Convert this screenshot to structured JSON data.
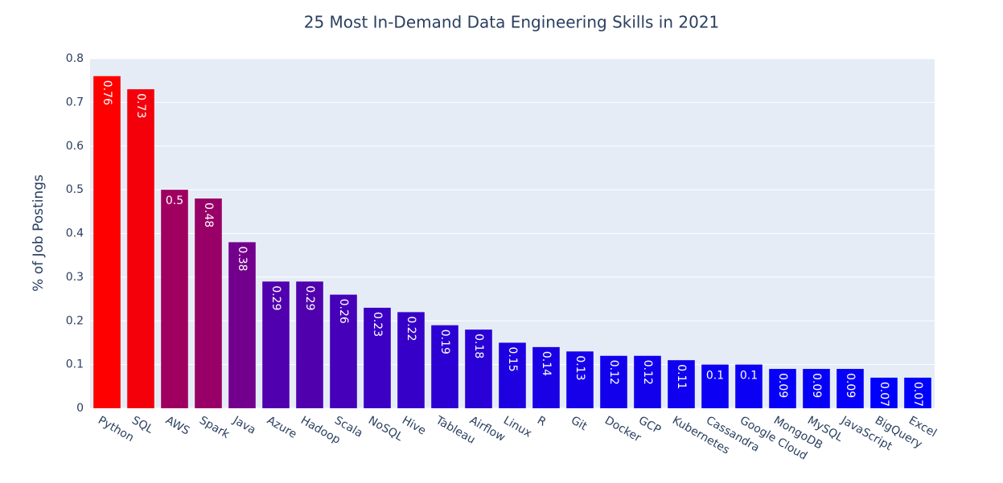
{
  "chart_data": {
    "type": "bar",
    "title": "25 Most In-Demand Data Engineering Skills in 2021",
    "y_label": "% of Job Postings",
    "categories": [
      "Python",
      "SQL",
      "AWS",
      "Spark",
      "Java",
      "Azure",
      "Hadoop",
      "Scala",
      "NoSQL",
      "Hive",
      "Tableau",
      "Airflow",
      "Linux",
      "R",
      "Git",
      "Docker",
      "GCP",
      "Kubernetes",
      "Cassandra",
      "Google Cloud",
      "MongoDB",
      "MySQL",
      "JavaScript",
      "BigQuery",
      "Excel"
    ],
    "values": [
      0.76,
      0.73,
      0.5,
      0.48,
      0.38,
      0.29,
      0.29,
      0.26,
      0.23,
      0.22,
      0.19,
      0.18,
      0.15,
      0.14,
      0.13,
      0.12,
      0.12,
      0.11,
      0.1,
      0.1,
      0.09,
      0.09,
      0.09,
      0.07,
      0.07
    ],
    "colors": [
      "#ff0000",
      "#f4000b",
      "#9f0060",
      "#980067",
      "#73008c",
      "#5100ae",
      "#5100ae",
      "#4600b9",
      "#3b00c4",
      "#3700c8",
      "#2c00d3",
      "#2900d6",
      "#1e00e1",
      "#1a00e5",
      "#1600e9",
      "#1200ed",
      "#1200ed",
      "#0f00f0",
      "#0b00f4",
      "#0b00f4",
      "#0700f8",
      "#0700f8",
      "#0700f8",
      "#0000ff",
      "#0000ff"
    ],
    "ylim": [
      0,
      0.8
    ],
    "yticks": [
      0,
      0.1,
      0.2,
      0.3,
      0.4,
      0.5,
      0.6,
      0.7,
      0.8
    ],
    "grid": true
  }
}
